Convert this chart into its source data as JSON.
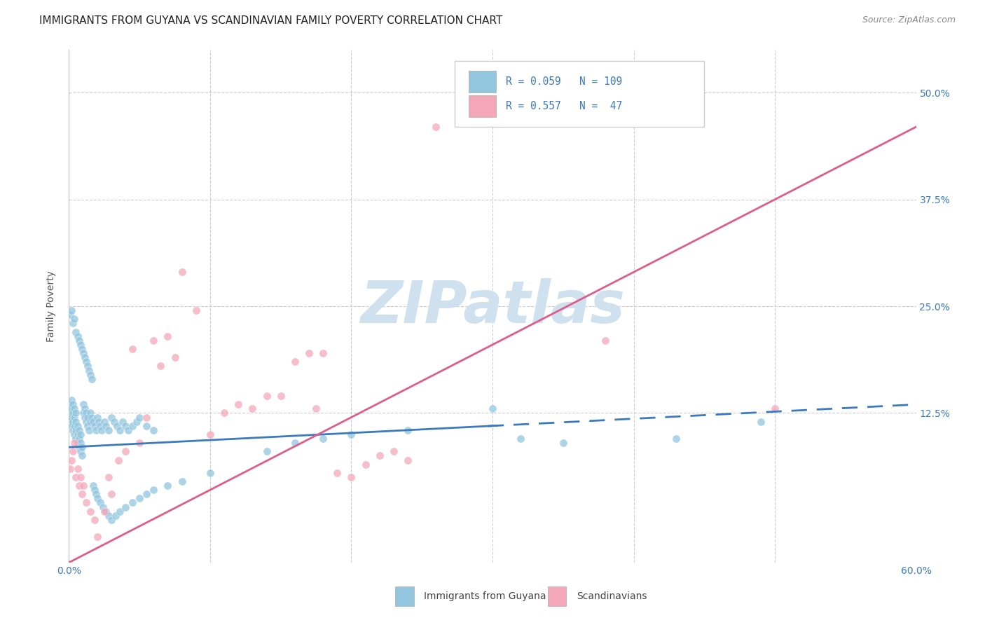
{
  "title": "IMMIGRANTS FROM GUYANA VS SCANDINAVIAN FAMILY POVERTY CORRELATION CHART",
  "source": "Source: ZipAtlas.com",
  "ylabel": "Family Poverty",
  "legend_label1": "Immigrants from Guyana",
  "legend_label2": "Scandinavians",
  "r1": 0.059,
  "n1": 109,
  "r2": 0.557,
  "n2": 47,
  "xlim": [
    0.0,
    0.6
  ],
  "ylim": [
    -0.05,
    0.55
  ],
  "color_blue": "#92c5de",
  "color_pink": "#f4a7b9",
  "line_blue": "#3a7abf",
  "line_pink": "#e05c8a",
  "watermark": "ZIPatlas",
  "watermark_color": "#cfe0ef",
  "blue_x": [
    0.001,
    0.001,
    0.001,
    0.002,
    0.002,
    0.002,
    0.002,
    0.003,
    0.003,
    0.003,
    0.003,
    0.004,
    0.004,
    0.004,
    0.004,
    0.005,
    0.005,
    0.005,
    0.005,
    0.006,
    0.006,
    0.006,
    0.007,
    0.007,
    0.007,
    0.008,
    0.008,
    0.008,
    0.009,
    0.009,
    0.01,
    0.01,
    0.011,
    0.011,
    0.012,
    0.012,
    0.013,
    0.013,
    0.014,
    0.015,
    0.015,
    0.016,
    0.017,
    0.018,
    0.019,
    0.02,
    0.021,
    0.022,
    0.023,
    0.025,
    0.026,
    0.028,
    0.03,
    0.032,
    0.034,
    0.036,
    0.038,
    0.04,
    0.042,
    0.045,
    0.048,
    0.05,
    0.055,
    0.06,
    0.001,
    0.002,
    0.003,
    0.004,
    0.005,
    0.006,
    0.007,
    0.008,
    0.009,
    0.01,
    0.011,
    0.012,
    0.013,
    0.014,
    0.015,
    0.016,
    0.017,
    0.018,
    0.019,
    0.02,
    0.022,
    0.024,
    0.026,
    0.028,
    0.03,
    0.033,
    0.036,
    0.04,
    0.045,
    0.05,
    0.055,
    0.06,
    0.07,
    0.08,
    0.1,
    0.14,
    0.16,
    0.18,
    0.2,
    0.24,
    0.3,
    0.32,
    0.35,
    0.43,
    0.49
  ],
  "blue_y": [
    0.115,
    0.125,
    0.135,
    0.11,
    0.12,
    0.13,
    0.14,
    0.105,
    0.115,
    0.125,
    0.135,
    0.1,
    0.11,
    0.12,
    0.13,
    0.095,
    0.105,
    0.115,
    0.125,
    0.09,
    0.1,
    0.11,
    0.085,
    0.095,
    0.105,
    0.08,
    0.09,
    0.1,
    0.075,
    0.085,
    0.125,
    0.135,
    0.12,
    0.13,
    0.115,
    0.125,
    0.11,
    0.12,
    0.105,
    0.115,
    0.125,
    0.12,
    0.115,
    0.11,
    0.105,
    0.12,
    0.115,
    0.11,
    0.105,
    0.115,
    0.11,
    0.105,
    0.12,
    0.115,
    0.11,
    0.105,
    0.115,
    0.11,
    0.105,
    0.11,
    0.115,
    0.12,
    0.11,
    0.105,
    0.24,
    0.245,
    0.23,
    0.235,
    0.22,
    0.215,
    0.21,
    0.205,
    0.2,
    0.195,
    0.19,
    0.185,
    0.18,
    0.175,
    0.17,
    0.165,
    0.04,
    0.035,
    0.03,
    0.025,
    0.02,
    0.015,
    0.01,
    0.005,
    0.0,
    0.005,
    0.01,
    0.015,
    0.02,
    0.025,
    0.03,
    0.035,
    0.04,
    0.045,
    0.055,
    0.08,
    0.09,
    0.095,
    0.1,
    0.105,
    0.13,
    0.095,
    0.09,
    0.095,
    0.115
  ],
  "pink_x": [
    0.001,
    0.002,
    0.003,
    0.004,
    0.005,
    0.006,
    0.007,
    0.008,
    0.009,
    0.01,
    0.012,
    0.015,
    0.018,
    0.02,
    0.025,
    0.028,
    0.03,
    0.035,
    0.04,
    0.045,
    0.05,
    0.055,
    0.06,
    0.065,
    0.07,
    0.075,
    0.08,
    0.09,
    0.1,
    0.11,
    0.12,
    0.13,
    0.14,
    0.15,
    0.16,
    0.17,
    0.175,
    0.18,
    0.19,
    0.2,
    0.21,
    0.22,
    0.23,
    0.24,
    0.26,
    0.38,
    0.5
  ],
  "pink_y": [
    0.06,
    0.07,
    0.08,
    0.09,
    0.05,
    0.06,
    0.04,
    0.05,
    0.03,
    0.04,
    0.02,
    0.01,
    0.0,
    -0.02,
    0.01,
    0.05,
    0.03,
    0.07,
    0.08,
    0.2,
    0.09,
    0.12,
    0.21,
    0.18,
    0.215,
    0.19,
    0.29,
    0.245,
    0.1,
    0.125,
    0.135,
    0.13,
    0.145,
    0.145,
    0.185,
    0.195,
    0.13,
    0.195,
    0.055,
    0.05,
    0.065,
    0.075,
    0.08,
    0.07,
    0.46,
    0.21,
    0.13
  ]
}
